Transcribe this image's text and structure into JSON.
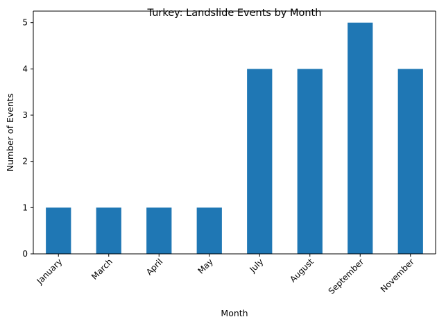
{
  "chart_data": {
    "type": "bar",
    "title": "Turkey: Landslide Events by Month",
    "xlabel": "Month",
    "ylabel": "Number of Events",
    "categories": [
      "January",
      "March",
      "April",
      "May",
      "July",
      "August",
      "September",
      "November"
    ],
    "values": [
      1,
      1,
      1,
      1,
      4,
      4,
      5,
      4
    ],
    "ylim": [
      0,
      5.25
    ],
    "yticks": [
      0,
      1,
      2,
      3,
      4,
      5
    ],
    "grid": false,
    "bar_color": "#1f77b4",
    "x_tick_rotation_deg": 45
  }
}
